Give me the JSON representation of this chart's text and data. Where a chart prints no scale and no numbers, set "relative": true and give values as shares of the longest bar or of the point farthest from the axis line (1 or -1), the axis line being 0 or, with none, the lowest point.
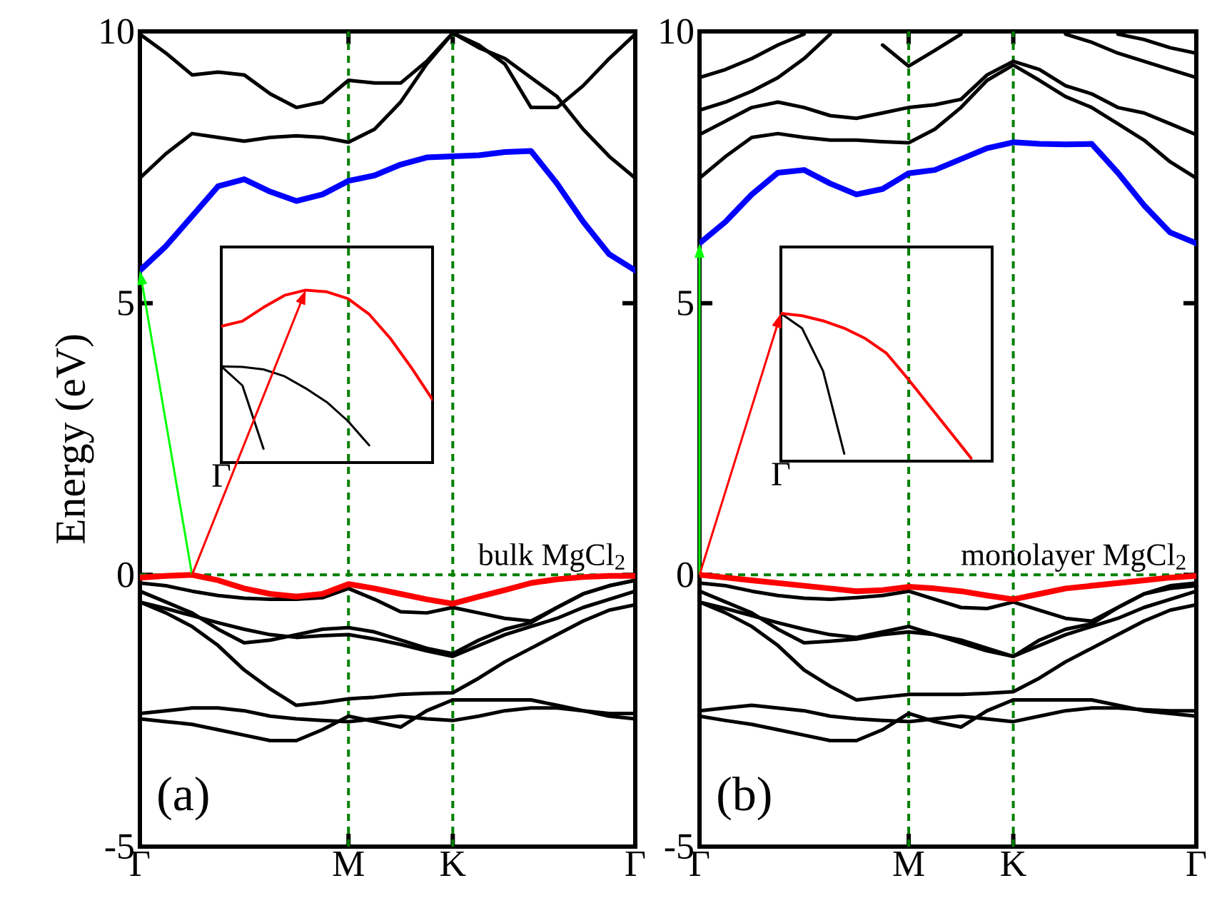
{
  "chart_data": [
    {
      "type": "line",
      "ylabel": "Energy (eV)",
      "ylim": [
        -5,
        10
      ],
      "yticks": [
        -5,
        0,
        5,
        10
      ],
      "categories": [
        "Γ",
        null,
        null,
        null,
        null,
        null,
        null,
        null,
        "M",
        null,
        null,
        null,
        "K",
        null,
        null,
        null,
        null,
        null,
        null,
        "Γ"
      ],
      "annotations": [
        "bulk MgCl$_{2}$",
        "(a)"
      ],
      "ref_lines": [
        {
          "axis": "x",
          "value": "M",
          "color": "#008000",
          "line_style": "dashed"
        },
        {
          "axis": "x",
          "value": "K",
          "color": "#008000",
          "line_style": "dashed"
        },
        {
          "axis": "y",
          "value": 0,
          "color": "#008000",
          "line_style": "dashed"
        }
      ],
      "series": [
        {
          "color": "#000000",
          "values": [
            7.3,
            7.75,
            8.12,
            8.05,
            7.98,
            8.05,
            8.08,
            8.05,
            7.96,
            8.2,
            8.7,
            9.4,
            9.97,
            9.7,
            9.5,
            9.15,
            8.8,
            8.2,
            7.7,
            7.3
          ]
        },
        {
          "color": "#000000",
          "values": [
            9.95,
            9.6,
            9.2,
            9.25,
            9.2,
            8.85,
            8.6,
            8.7,
            9.1,
            9.05,
            9.05,
            9.45,
            9.97,
            9.75,
            9.4,
            8.6,
            8.6,
            9.0,
            9.5,
            9.95
          ]
        },
        {
          "color": "#000000",
          "values": [
            -0.15,
            -0.2,
            -0.3,
            -0.38,
            -0.43,
            -0.45,
            -0.45,
            -0.42,
            -0.25,
            -0.45,
            -0.68,
            -0.7,
            -0.6,
            -0.7,
            -0.8,
            -0.85,
            -0.6,
            -0.35,
            -0.2,
            -0.1
          ]
        },
        {
          "color": "#000000",
          "values": [
            -0.5,
            -0.62,
            -0.75,
            -0.88,
            -1.0,
            -1.1,
            -1.15,
            -1.12,
            -1.1,
            -1.18,
            -1.28,
            -1.4,
            -1.5,
            -1.3,
            -1.1,
            -0.95,
            -0.8,
            -0.6,
            -0.45,
            -0.3
          ]
        },
        {
          "color": "#000000",
          "values": [
            -0.3,
            -0.5,
            -0.7,
            -1.0,
            -1.25,
            -1.2,
            -1.1,
            -1.0,
            -0.97,
            -1.05,
            -1.2,
            -1.35,
            -1.45,
            -1.2,
            -1.0,
            -0.88,
            -0.6,
            -0.35,
            -0.2,
            -0.1
          ]
        },
        {
          "color": "#000000",
          "values": [
            -0.5,
            -0.7,
            -0.95,
            -1.3,
            -1.75,
            -2.1,
            -2.4,
            -2.35,
            -2.28,
            -2.25,
            -2.2,
            -2.18,
            -2.17,
            -1.9,
            -1.6,
            -1.35,
            -1.1,
            -0.85,
            -0.65,
            -0.55
          ]
        },
        {
          "color": "#000000",
          "values": [
            -2.55,
            -2.5,
            -2.45,
            -2.45,
            -2.5,
            -2.6,
            -2.65,
            -2.68,
            -2.7,
            -2.65,
            -2.6,
            -2.65,
            -2.68,
            -2.6,
            -2.5,
            -2.45,
            -2.45,
            -2.5,
            -2.55,
            -2.55
          ]
        },
        {
          "color": "#000000",
          "values": [
            -2.65,
            -2.7,
            -2.75,
            -2.85,
            -2.95,
            -3.05,
            -3.05,
            -2.85,
            -2.6,
            -2.7,
            -2.8,
            -2.5,
            -2.3,
            -2.3,
            -2.3,
            -2.3,
            -2.4,
            -2.5,
            -2.6,
            -2.65
          ]
        },
        {
          "color": "#0000ff",
          "values": [
            5.6,
            6.05,
            6.6,
            7.15,
            7.28,
            7.05,
            6.88,
            7.0,
            7.25,
            7.35,
            7.55,
            7.68,
            7.7,
            7.72,
            7.78,
            7.8,
            7.2,
            6.5,
            5.9,
            5.6
          ]
        },
        {
          "color": "#ff0000",
          "values": [
            -0.05,
            -0.02,
            0.0,
            -0.1,
            -0.25,
            -0.35,
            -0.4,
            -0.35,
            -0.17,
            -0.25,
            -0.35,
            -0.45,
            -0.53,
            -0.4,
            -0.28,
            -0.15,
            -0.08,
            -0.04,
            -0.02,
            -0.02
          ]
        }
      ]
    },
    {
      "type": "line",
      "ylim": [
        -5,
        10
      ],
      "yticks": [
        -5,
        0,
        5,
        10
      ],
      "categories": [
        "Γ",
        null,
        null,
        null,
        null,
        null,
        null,
        null,
        "M",
        null,
        null,
        null,
        "K",
        null,
        null,
        null,
        null,
        null,
        null,
        "Γ"
      ],
      "annotations": [
        "monolayer MgCl$_{2}$",
        "(b)"
      ],
      "ref_lines": [
        {
          "axis": "x",
          "value": "M",
          "color": "#008000",
          "line_style": "dashed"
        },
        {
          "axis": "x",
          "value": "K",
          "color": "#008000",
          "line_style": "dashed"
        },
        {
          "axis": "y",
          "value": 0,
          "color": "#008000",
          "line_style": "dashed"
        }
      ],
      "series": [
        {
          "color": "#000000",
          "values": [
            7.3,
            7.7,
            8.05,
            8.12,
            8.05,
            8.0,
            8.0,
            7.97,
            7.95,
            8.2,
            8.6,
            9.1,
            9.38,
            9.1,
            8.8,
            8.6,
            8.3,
            8.0,
            7.6,
            7.3
          ]
        },
        {
          "color": "#000000",
          "values": [
            8.1,
            8.35,
            8.6,
            8.7,
            8.6,
            8.45,
            8.4,
            8.5,
            8.6,
            8.65,
            8.75,
            9.2,
            9.45,
            9.3,
            9.0,
            8.85,
            8.6,
            8.5,
            8.3,
            8.1
          ]
        },
        {
          "color": "#000000",
          "values": [
            8.55,
            8.7,
            8.9,
            9.15,
            9.5,
            9.95,
            null,
            null,
            null,
            null,
            null,
            null,
            null,
            null,
            null,
            null,
            null,
            null,
            null,
            null
          ]
        },
        {
          "color": "#000000",
          "values": [
            9.15,
            9.3,
            9.5,
            9.75,
            9.95,
            null,
            null,
            null,
            null,
            null,
            null,
            null,
            null,
            null,
            null,
            null,
            null,
            null,
            null,
            null
          ]
        },
        {
          "color": "#000000",
          "values": [
            null,
            null,
            null,
            null,
            null,
            null,
            null,
            9.75,
            9.36,
            9.65,
            9.95,
            null,
            null,
            null,
            null,
            null,
            null,
            null,
            null,
            null
          ]
        },
        {
          "color": "#000000",
          "values": [
            null,
            null,
            null,
            null,
            null,
            null,
            null,
            null,
            null,
            null,
            null,
            null,
            null,
            null,
            9.95,
            9.8,
            9.6,
            9.45,
            9.3,
            9.15
          ]
        },
        {
          "color": "#000000",
          "values": [
            null,
            null,
            null,
            null,
            null,
            null,
            null,
            null,
            null,
            null,
            null,
            null,
            null,
            null,
            null,
            null,
            9.95,
            9.85,
            9.7,
            9.6
          ]
        },
        {
          "color": "#000000",
          "values": [
            -0.15,
            -0.2,
            -0.3,
            -0.38,
            -0.43,
            -0.45,
            -0.42,
            -0.38,
            -0.3,
            -0.45,
            -0.6,
            -0.62,
            -0.5,
            -0.65,
            -0.8,
            -0.85,
            -0.6,
            -0.35,
            -0.2,
            -0.15
          ]
        },
        {
          "color": "#000000",
          "values": [
            -0.5,
            -0.62,
            -0.75,
            -0.88,
            -1.0,
            -1.1,
            -1.15,
            -1.05,
            -0.95,
            -1.1,
            -1.25,
            -1.4,
            -1.5,
            -1.3,
            -1.1,
            -0.95,
            -0.8,
            -0.6,
            -0.45,
            -0.3
          ]
        },
        {
          "color": "#000000",
          "values": [
            -0.3,
            -0.5,
            -0.7,
            -1.0,
            -1.25,
            -1.22,
            -1.18,
            -1.1,
            -1.05,
            -1.1,
            -1.2,
            -1.35,
            -1.5,
            -1.2,
            -1.0,
            -0.9,
            -0.6,
            -0.35,
            -0.25,
            -0.2
          ]
        },
        {
          "color": "#000000",
          "values": [
            -0.5,
            -0.7,
            -0.95,
            -1.3,
            -1.75,
            -2.05,
            -2.3,
            -2.25,
            -2.2,
            -2.2,
            -2.2,
            -2.18,
            -2.15,
            -1.9,
            -1.6,
            -1.35,
            -1.1,
            -0.85,
            -0.65,
            -0.55
          ]
        },
        {
          "color": "#000000",
          "values": [
            -2.5,
            -2.45,
            -2.4,
            -2.45,
            -2.5,
            -2.6,
            -2.65,
            -2.68,
            -2.7,
            -2.65,
            -2.6,
            -2.65,
            -2.7,
            -2.6,
            -2.5,
            -2.45,
            -2.45,
            -2.48,
            -2.5,
            -2.5
          ]
        },
        {
          "color": "#000000",
          "values": [
            -2.6,
            -2.68,
            -2.75,
            -2.85,
            -2.95,
            -3.05,
            -3.05,
            -2.85,
            -2.55,
            -2.7,
            -2.8,
            -2.5,
            -2.3,
            -2.3,
            -2.3,
            -2.3,
            -2.4,
            -2.5,
            -2.55,
            -2.6
          ]
        },
        {
          "color": "#0000ff",
          "values": [
            6.1,
            6.5,
            7.0,
            7.4,
            7.45,
            7.2,
            7.0,
            7.1,
            7.39,
            7.45,
            7.65,
            7.85,
            7.96,
            7.93,
            7.92,
            7.93,
            7.4,
            6.8,
            6.3,
            6.1
          ]
        },
        {
          "color": "#ff0000",
          "values": [
            0.0,
            -0.05,
            -0.1,
            -0.15,
            -0.2,
            -0.25,
            -0.3,
            -0.28,
            -0.22,
            -0.25,
            -0.3,
            -0.38,
            -0.45,
            -0.35,
            -0.25,
            -0.2,
            -0.15,
            -0.1,
            -0.05,
            -0.02
          ]
        }
      ]
    },
    {
      "type": "line",
      "relative": true,
      "categories": [
        null,
        null,
        null,
        null,
        null,
        null,
        null,
        null,
        null,
        null,
        null
      ],
      "annotations": [
        "Γ"
      ],
      "series": [
        {
          "color": "#000000",
          "values": [
            0.558,
            0.447,
            0.08,
            null,
            null,
            null,
            null,
            null,
            null,
            null,
            null
          ]
        },
        {
          "color": "#000000",
          "values": [
            0.558,
            0.555,
            0.54,
            0.5,
            0.43,
            0.35,
            0.24,
            0.1,
            null,
            null,
            null
          ]
        },
        {
          "color": "#ff0000",
          "values": [
            0.79,
            0.82,
            0.9,
            0.97,
            1.0,
            0.99,
            0.95,
            0.86,
            0.72,
            0.55,
            0.365
          ]
        }
      ]
    },
    {
      "type": "line",
      "relative": true,
      "categories": [
        null,
        null,
        null,
        null,
        null,
        null,
        null,
        null,
        null,
        null,
        null
      ],
      "annotations": [
        "Γ"
      ],
      "series": [
        {
          "color": "#000000",
          "values": [
            1,
            0.9,
            0.61,
            0.05,
            null,
            null,
            null,
            null,
            null,
            null,
            null
          ]
        },
        {
          "color": "#ff0000",
          "values": [
            1,
            0.985,
            0.95,
            0.9,
            0.83,
            0.73,
            0.56,
            0.38,
            0.2,
            0.02,
            null
          ]
        }
      ]
    }
  ]
}
